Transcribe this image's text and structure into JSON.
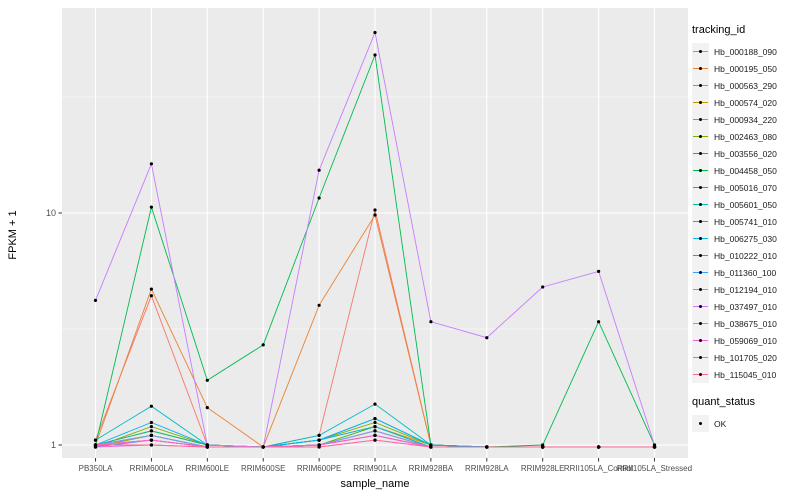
{
  "chart": {
    "y_axis_title": "FPKM + 1",
    "x_axis_title": "sample_name",
    "legend": {
      "tracking_title": "tracking_id",
      "quant_title": "quant_status",
      "quant_items": [
        "OK"
      ]
    }
  },
  "chart_data": {
    "type": "line",
    "title": "",
    "xlabel": "sample_name",
    "ylabel": "FPKM + 1",
    "y_scale": "log10",
    "y_ticks": [
      1,
      10
    ],
    "y_tick_labels": [
      "1",
      "10"
    ],
    "ylim": [
      0.9,
      75
    ],
    "grid": true,
    "legend_position": "right",
    "panel_color": "#EBEBEB",
    "grid_color": "#FFFFFF",
    "point_color": "#000000",
    "point_shape": "filled-circle",
    "quant_status": {
      "title": "quant_status",
      "items": [
        "OK"
      ]
    },
    "categories": [
      "PB350LA",
      "RRIM600LA",
      "RRIM600LE",
      "RRIM600SE",
      "RRIM600PE",
      "RRIM901LA",
      "RRIM928BA",
      "RRIM928LA",
      "RRIM928LE",
      "RRII105LA_Control",
      "RRII105LA_Stressed"
    ],
    "series": [
      {
        "name": "Hb_000188_090",
        "color": "#F8766D",
        "values": [
          1.05,
          4.4,
          1.0,
          0.98,
          1.1,
          10.3,
          1.0,
          0.98,
          0.98,
          0.98,
          0.98
        ]
      },
      {
        "name": "Hb_000195_050",
        "color": "#EA8331",
        "values": [
          1.0,
          4.7,
          1.45,
          0.98,
          4.0,
          9.8,
          1.0,
          0.98,
          0.98,
          0.98,
          0.98
        ]
      },
      {
        "name": "Hb_000563_290",
        "color": "#D89000",
        "values": [
          1.0,
          1.15,
          1.0,
          0.98,
          1.05,
          1.2,
          1.0,
          0.98,
          0.98,
          0.98,
          0.98
        ]
      },
      {
        "name": "Hb_000574_020",
        "color": "#C09B00",
        "values": [
          0.98,
          1.1,
          0.98,
          0.98,
          1.0,
          1.15,
          0.98,
          0.98,
          0.98,
          0.98,
          0.98
        ]
      },
      {
        "name": "Hb_000934_220",
        "color": "#A3A500",
        "values": [
          1.0,
          1.05,
          0.98,
          0.98,
          1.0,
          1.1,
          0.98,
          0.98,
          0.98,
          0.98,
          0.98
        ]
      },
      {
        "name": "Hb_002463_080",
        "color": "#7CAE00",
        "values": [
          0.98,
          1.2,
          1.0,
          0.98,
          1.05,
          1.25,
          1.0,
          0.98,
          0.98,
          0.98,
          0.98
        ]
      },
      {
        "name": "Hb_003556_020",
        "color": "#39B600",
        "values": [
          1.0,
          1.1,
          0.98,
          0.98,
          1.0,
          1.2,
          0.98,
          0.98,
          0.98,
          0.98,
          0.98
        ]
      },
      {
        "name": "Hb_004458_050",
        "color": "#00BB4E",
        "values": [
          1.0,
          10.6,
          1.9,
          2.7,
          11.6,
          48,
          1.0,
          0.98,
          1.0,
          3.4,
          1.0
        ]
      },
      {
        "name": "Hb_005016_070",
        "color": "#00BF7D",
        "values": [
          1.0,
          1.15,
          1.0,
          0.98,
          1.05,
          1.3,
          1.0,
          0.98,
          0.98,
          0.98,
          0.98
        ]
      },
      {
        "name": "Hb_005601_050",
        "color": "#00C1A3",
        "values": [
          1.0,
          1.1,
          0.98,
          0.98,
          1.0,
          1.15,
          0.98,
          0.98,
          0.98,
          0.98,
          0.98
        ]
      },
      {
        "name": "Hb_005741_010",
        "color": "#00BFC4",
        "values": [
          1.05,
          1.47,
          1.0,
          0.98,
          1.1,
          1.5,
          1.0,
          0.98,
          0.98,
          0.98,
          0.98
        ]
      },
      {
        "name": "Hb_006275_030",
        "color": "#00BAE0",
        "values": [
          1.0,
          1.1,
          0.98,
          0.98,
          1.05,
          1.2,
          0.98,
          0.98,
          0.98,
          0.98,
          0.98
        ]
      },
      {
        "name": "Hb_010222_010",
        "color": "#00B0F6",
        "values": [
          1.0,
          1.25,
          1.0,
          0.98,
          1.05,
          1.3,
          1.0,
          0.98,
          0.98,
          0.98,
          0.98
        ]
      },
      {
        "name": "Hb_011360_100",
        "color": "#35A2FF",
        "values": [
          0.98,
          1.05,
          0.98,
          0.98,
          1.0,
          1.1,
          0.98,
          0.98,
          0.98,
          0.98,
          0.98
        ]
      },
      {
        "name": "Hb_012194_010",
        "color": "#9590FF",
        "values": [
          1.0,
          1.1,
          0.98,
          0.98,
          1.0,
          1.15,
          0.98,
          0.98,
          0.98,
          0.98,
          0.98
        ]
      },
      {
        "name": "Hb_037497_010",
        "color": "#C77CFF",
        "values": [
          4.2,
          16.3,
          1.0,
          0.98,
          15.3,
          60,
          3.4,
          2.9,
          4.8,
          5.6,
          1.0
        ]
      },
      {
        "name": "Hb_038675_010",
        "color": "#E76BF3",
        "values": [
          1.0,
          1.05,
          0.98,
          0.98,
          1.0,
          1.1,
          0.98,
          0.98,
          0.98,
          0.98,
          0.98
        ]
      },
      {
        "name": "Hb_059069_010",
        "color": "#FA62DB",
        "values": [
          0.98,
          1.0,
          0.98,
          0.98,
          0.98,
          1.05,
          0.98,
          0.98,
          0.98,
          0.98,
          0.98
        ]
      },
      {
        "name": "Hb_101705_020",
        "color": "#FF62BC",
        "values": [
          1.0,
          1.05,
          0.98,
          0.98,
          1.0,
          1.1,
          0.98,
          0.98,
          0.98,
          0.98,
          0.98
        ]
      },
      {
        "name": "Hb_115045_010",
        "color": "#FF6A98",
        "values": [
          1.0,
          1.0,
          0.98,
          0.98,
          0.98,
          1.05,
          0.98,
          0.98,
          0.98,
          0.98,
          0.98
        ]
      }
    ]
  }
}
